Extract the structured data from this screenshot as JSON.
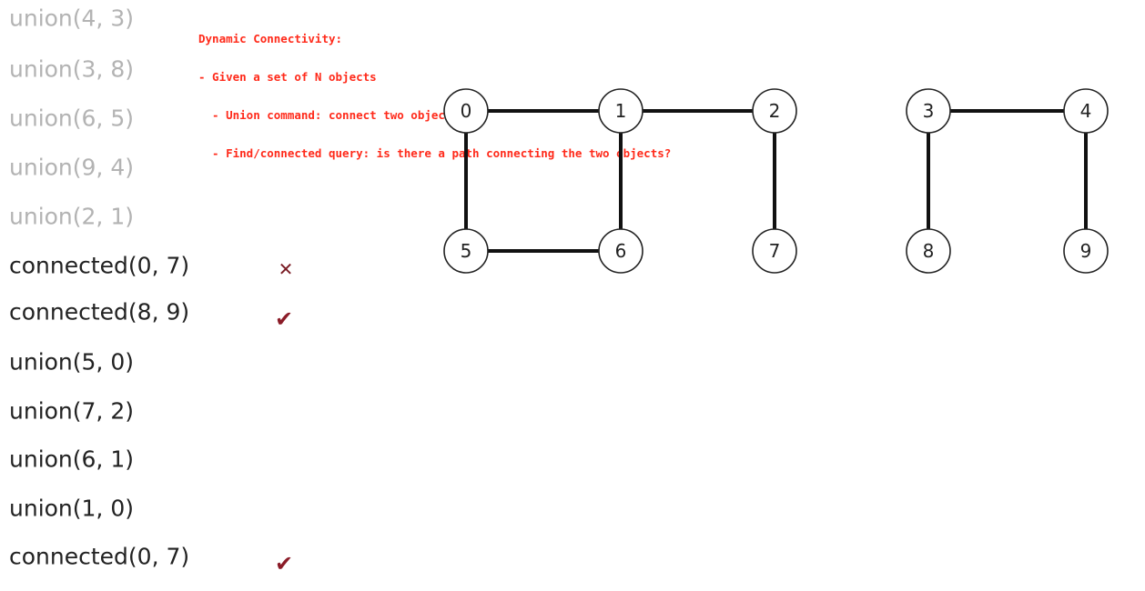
{
  "commands": [
    {
      "text": "union(4, 3)",
      "faded": true,
      "mark": ""
    },
    {
      "text": "union(3, 8)",
      "faded": true,
      "mark": ""
    },
    {
      "text": "union(6, 5)",
      "faded": true,
      "mark": ""
    },
    {
      "text": "union(9, 4)",
      "faded": true,
      "mark": ""
    },
    {
      "text": "union(2, 1)",
      "faded": true,
      "mark": ""
    },
    {
      "text": "connected(0, 7)",
      "faded": false,
      "mark": "✕"
    },
    {
      "text": "connected(8, 9)",
      "faded": false,
      "mark": "✔"
    },
    {
      "text": "union(5, 0)",
      "faded": false,
      "mark": ""
    },
    {
      "text": "union(7, 2)",
      "faded": false,
      "mark": ""
    },
    {
      "text": "union(6, 1)",
      "faded": false,
      "mark": ""
    },
    {
      "text": "union(1, 0)",
      "faded": false,
      "mark": ""
    },
    {
      "text": "connected(0, 7)",
      "faded": false,
      "mark": "✔"
    }
  ],
  "notes": {
    "title": "Dynamic Connectivity:",
    "line1": "- Given a set of N objects",
    "line2": "  - Union command: connect two objects",
    "line3": "  - Find/connected query: is there a path connecting the two objects?"
  },
  "graph": {
    "nodes": [
      {
        "id": "0",
        "label": "0"
      },
      {
        "id": "1",
        "label": "1"
      },
      {
        "id": "2",
        "label": "2"
      },
      {
        "id": "3",
        "label": "3"
      },
      {
        "id": "4",
        "label": "4"
      },
      {
        "id": "5",
        "label": "5"
      },
      {
        "id": "6",
        "label": "6"
      },
      {
        "id": "7",
        "label": "7"
      },
      {
        "id": "8",
        "label": "8"
      },
      {
        "id": "9",
        "label": "9"
      }
    ],
    "edges": [
      [
        "0",
        "1"
      ],
      [
        "1",
        "2"
      ],
      [
        "3",
        "4"
      ],
      [
        "0",
        "5"
      ],
      [
        "1",
        "6"
      ],
      [
        "2",
        "7"
      ],
      [
        "3",
        "8"
      ],
      [
        "4",
        "9"
      ],
      [
        "5",
        "6"
      ]
    ]
  }
}
